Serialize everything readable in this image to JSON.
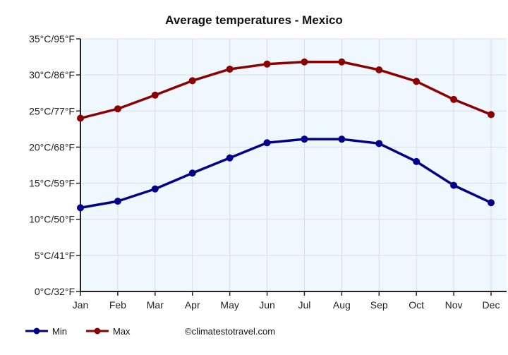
{
  "chart_data": {
    "type": "line",
    "title": "Average temperatures - Mexico",
    "categories": [
      "Jan",
      "Feb",
      "Mar",
      "Apr",
      "May",
      "Jun",
      "Jul",
      "Aug",
      "Sep",
      "Oct",
      "Nov",
      "Dec"
    ],
    "series": [
      {
        "name": "Min",
        "color": "#00008b",
        "values": [
          11.6,
          12.5,
          14.2,
          16.4,
          18.5,
          20.6,
          21.1,
          21.1,
          20.5,
          18.0,
          14.7,
          12.3
        ]
      },
      {
        "name": "Max",
        "color": "#8b0000",
        "values": [
          24.0,
          25.3,
          27.2,
          29.2,
          30.8,
          31.5,
          31.8,
          31.8,
          30.7,
          29.1,
          26.6,
          24.5
        ]
      }
    ],
    "ylim": [
      0,
      35
    ],
    "yticks": [
      {
        "value": 0,
        "label": "0°C/32°F"
      },
      {
        "value": 5,
        "label": "5°C/41°F"
      },
      {
        "value": 10,
        "label": "10°C/50°F"
      },
      {
        "value": 15,
        "label": "15°C/59°F"
      },
      {
        "value": 20,
        "label": "20°C/68°F"
      },
      {
        "value": 25,
        "label": "25°C/77°F"
      },
      {
        "value": 30,
        "label": "30°C/86°F"
      },
      {
        "value": 35,
        "label": "35°C/95°F"
      }
    ],
    "grid": true,
    "plot_background": "#f0f8ff",
    "legend_position": "bottom-left",
    "credit": "©climatestotravel.com"
  }
}
